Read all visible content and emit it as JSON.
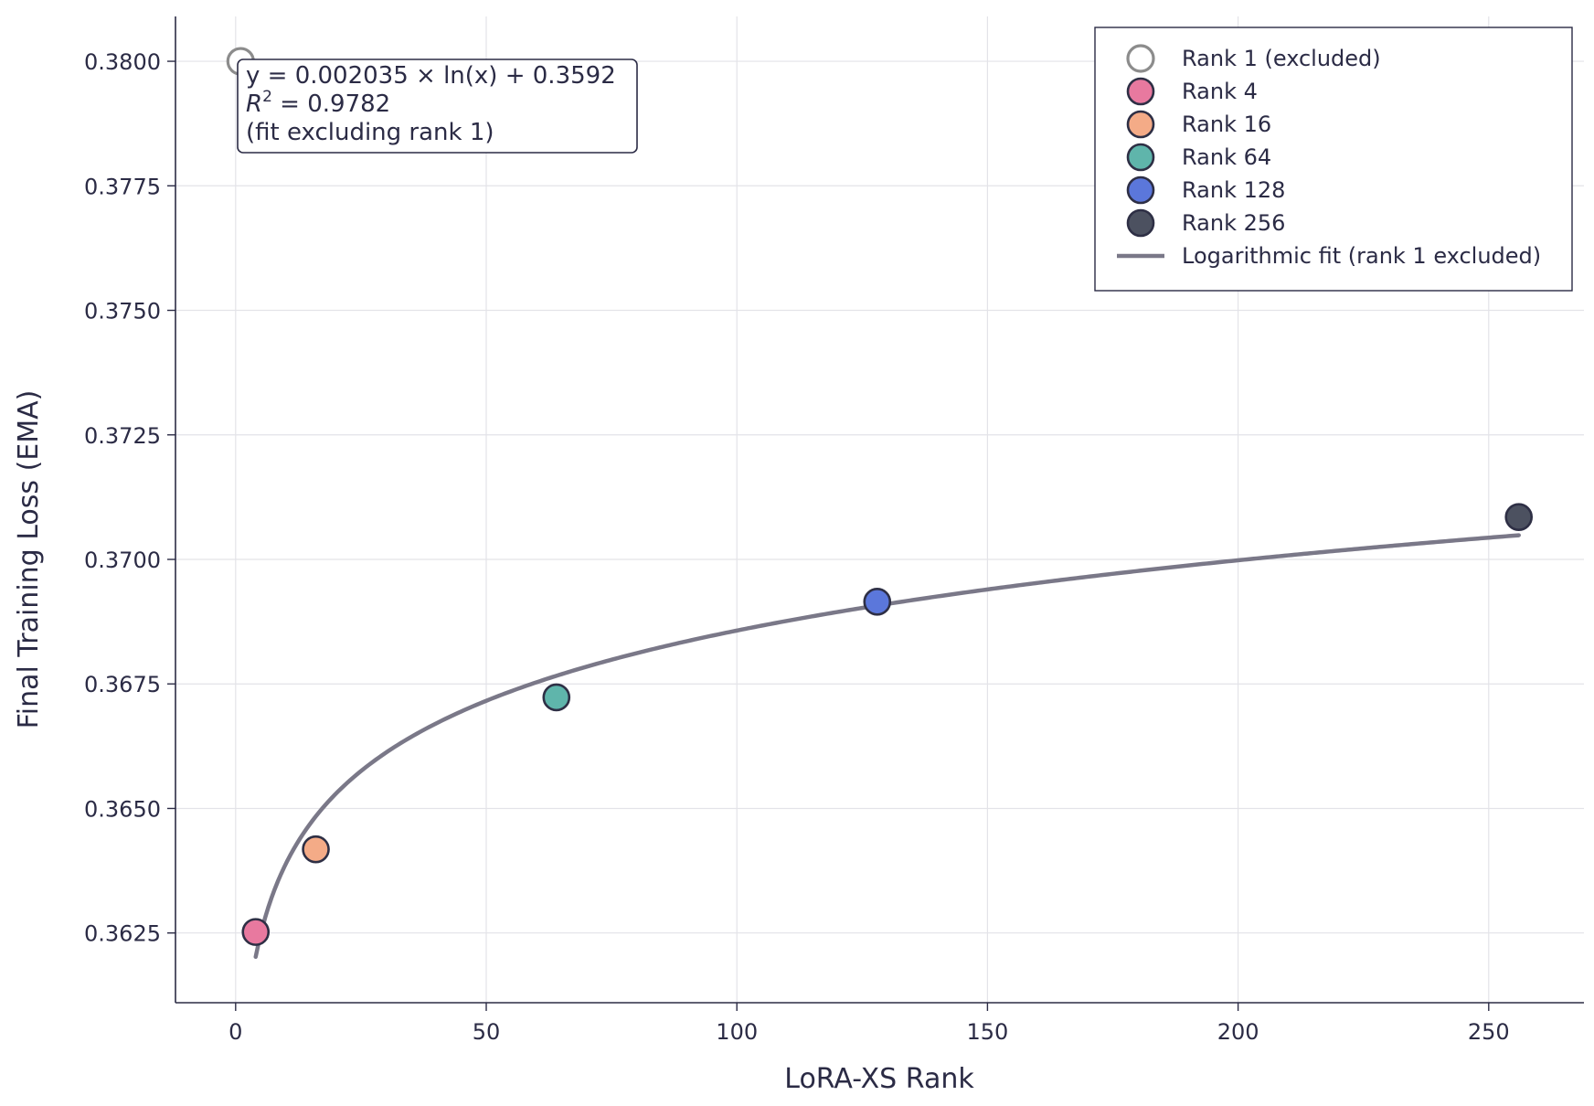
{
  "chart_data": {
    "type": "scatter",
    "title": "",
    "xlabel": "LoRA-XS Rank",
    "ylabel": "Final Training Loss (EMA)",
    "xlim": [
      -12,
      269
    ],
    "ylim": [
      0.3611,
      0.3809
    ],
    "x_ticks": [
      0,
      50,
      100,
      150,
      200,
      250
    ],
    "y_ticks": [
      0.3625,
      0.365,
      0.3675,
      0.37,
      0.3725,
      0.375,
      0.3775,
      0.38
    ],
    "grid": true,
    "legend_position": "top-right",
    "series": [
      {
        "name": "Rank 1 (excluded)",
        "x": 1,
        "y": 0.38,
        "color": "#8c8c8c",
        "hollow": true
      },
      {
        "name": "Rank 4",
        "x": 4,
        "y": 0.36252,
        "color": "#e8799f",
        "hollow": false
      },
      {
        "name": "Rank 16",
        "x": 16,
        "y": 0.36418,
        "color": "#f4ab87",
        "hollow": false
      },
      {
        "name": "Rank 64",
        "x": 64,
        "y": 0.36723,
        "color": "#5fb5ab",
        "hollow": false
      },
      {
        "name": "Rank 128",
        "x": 128,
        "y": 0.36915,
        "color": "#5b77db",
        "hollow": false
      },
      {
        "name": "Rank 256",
        "x": 256,
        "y": 0.37085,
        "color": "#4c5160",
        "hollow": false
      }
    ],
    "fit": {
      "name": "Logarithmic fit (rank 1 excluded)",
      "a": 0.002035,
      "b": 0.3592,
      "x_range": [
        4,
        256
      ],
      "color": "#7a7888"
    },
    "annotation": {
      "line1": "y = 0.002035 × ln(x) + 0.3592",
      "r2_symbol": "R",
      "r2_exp": "2",
      "r2_value": " = 0.9782",
      "line3": "(fit excluding rank 1)"
    }
  }
}
